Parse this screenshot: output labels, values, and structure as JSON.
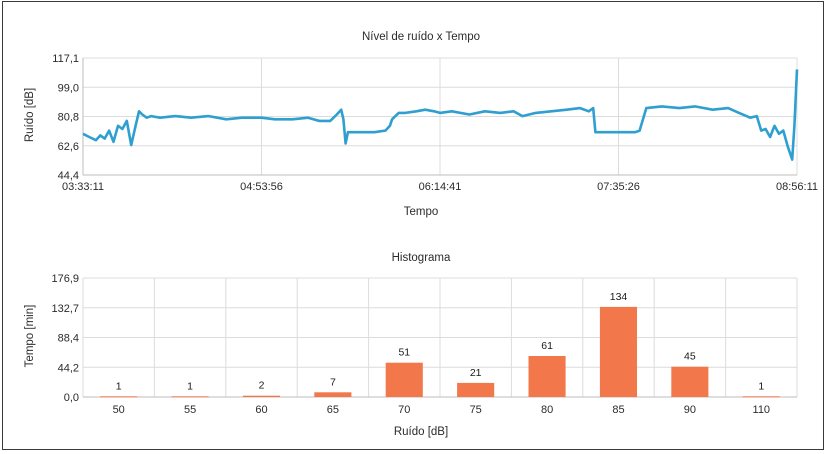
{
  "chart_data": [
    {
      "type": "line",
      "title": "Nível de ruído x Tempo",
      "xlabel": "Tempo",
      "ylabel": "Ruído [dB]",
      "ylim": [
        44.4,
        117.1
      ],
      "y_ticks": [
        "117,1",
        "99,0",
        "80,8",
        "62,6",
        "44,4"
      ],
      "x_ticks": [
        "03:33:11",
        "04:53:56",
        "06:14:41",
        "07:35:26",
        "08:56:11"
      ],
      "grid": true,
      "color": "#2f9fd0",
      "series": [
        {
          "x": [
            "03:33:11",
            "03:36:00",
            "03:39:00",
            "03:41:00",
            "03:43:00",
            "03:45:00",
            "03:47:00",
            "03:49:00",
            "03:51:00",
            "03:53:00",
            "03:55:00",
            "03:57:00",
            "03:58:30",
            "04:00:00",
            "04:02:00",
            "04:04:00",
            "04:08:00",
            "04:15:00",
            "04:22:00",
            "04:30:00",
            "04:38:00",
            "04:45:00",
            "04:53:56",
            "05:00:00",
            "05:08:00",
            "05:15:00",
            "05:20:00",
            "05:25:00",
            "05:28:00",
            "05:30:00",
            "05:31:00",
            "05:32:00",
            "05:33:00",
            "05:36:00",
            "05:45:00",
            "05:50:00",
            "05:52:00",
            "05:53:00",
            "05:54:30",
            "05:56:00",
            "05:59:00",
            "06:04:00",
            "06:08:00",
            "06:12:00",
            "06:14:41",
            "06:20:00",
            "06:28:00",
            "06:35:00",
            "06:42:00",
            "06:48:00",
            "06:52:00",
            "06:58:00",
            "07:05:00",
            "07:12:00",
            "07:18:00",
            "07:22:00",
            "07:24:00",
            "07:25:00",
            "07:30:00",
            "07:35:26",
            "07:40:00",
            "07:43:00",
            "07:45:00",
            "07:48:00",
            "07:55:00",
            "08:03:00",
            "08:10:00",
            "08:18:00",
            "08:25:00",
            "08:30:00",
            "08:35:00",
            "08:38:00",
            "08:40:00",
            "08:42:00",
            "08:44:00",
            "08:46:00",
            "08:48:00",
            "08:50:00",
            "08:52:00",
            "08:53:00",
            "08:54:00",
            "08:55:00",
            "08:56:11"
          ],
          "values": [
            70,
            68,
            66,
            69,
            67,
            72,
            65,
            75,
            73,
            78,
            63,
            75,
            84,
            82,
            80,
            81,
            80,
            81,
            80,
            81,
            79,
            80,
            80,
            79,
            79,
            80,
            78,
            78,
            82,
            85,
            79,
            64,
            71,
            71,
            71,
            72,
            75,
            79,
            81,
            83,
            83,
            84,
            85,
            84,
            83,
            84,
            82,
            84,
            83,
            84,
            81,
            83,
            84,
            85,
            86,
            84,
            86,
            71,
            71,
            71,
            71,
            71,
            72,
            86,
            87,
            86,
            87,
            85,
            86,
            83,
            80,
            81,
            72,
            73,
            68,
            75,
            70,
            72,
            62,
            58,
            54,
            75,
            110
          ]
        }
      ]
    },
    {
      "type": "bar",
      "title": "Histograma",
      "xlabel": "Ruído [dB]",
      "ylabel": "Tempo [min]",
      "ylim": [
        0,
        176.9
      ],
      "y_ticks": [
        "176,9",
        "132,7",
        "88,4",
        "44,2",
        "0,0"
      ],
      "categories": [
        "50",
        "55",
        "60",
        "65",
        "70",
        "75",
        "80",
        "85",
        "90",
        "110"
      ],
      "values": [
        1,
        1,
        2,
        7,
        51,
        21,
        61,
        134,
        45,
        1
      ],
      "data_labels": [
        "1",
        "1",
        "2",
        "7",
        "51",
        "21",
        "61",
        "134",
        "45",
        "1"
      ],
      "grid": true,
      "color": "#f2784b"
    }
  ]
}
